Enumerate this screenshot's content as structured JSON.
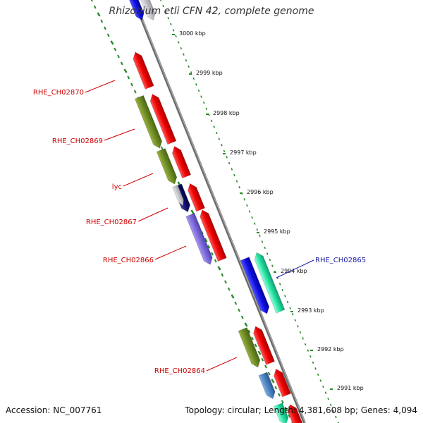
{
  "title": "Rhizobium etli CFN 42, complete genome",
  "footer": {
    "accession": "Accession: NC_007761",
    "stats": "Topology: circular; Length: 4,381,608 bp; Genes: 4,094"
  },
  "ticks": [
    "3000 kbp",
    "2999 kbp",
    "2998 kbp",
    "2997 kbp",
    "2996 kbp",
    "2995 kbp",
    "2994 kbp",
    "2993 kbp",
    "2992 kbp",
    "2991 kbp"
  ],
  "gene_labels": [
    "RHE_CH02870",
    "RHE_CH02869",
    "lyc",
    "RHE_CH02867",
    "RHE_CH02866",
    "RHE_CH02865",
    "RHE_CH02864"
  ],
  "colors": {
    "backbone": "#888888",
    "gc_skew": "#2a8a2a",
    "cds": "#ee0000",
    "olive": "#6b8a22",
    "blue": "#1010e0",
    "teal": "#22e0a0",
    "purple": "#7a68d8",
    "navy": "#101070",
    "steel": "#4a80c0",
    "label_red": "#cc0000",
    "label_blue": "#1a1aa0"
  }
}
